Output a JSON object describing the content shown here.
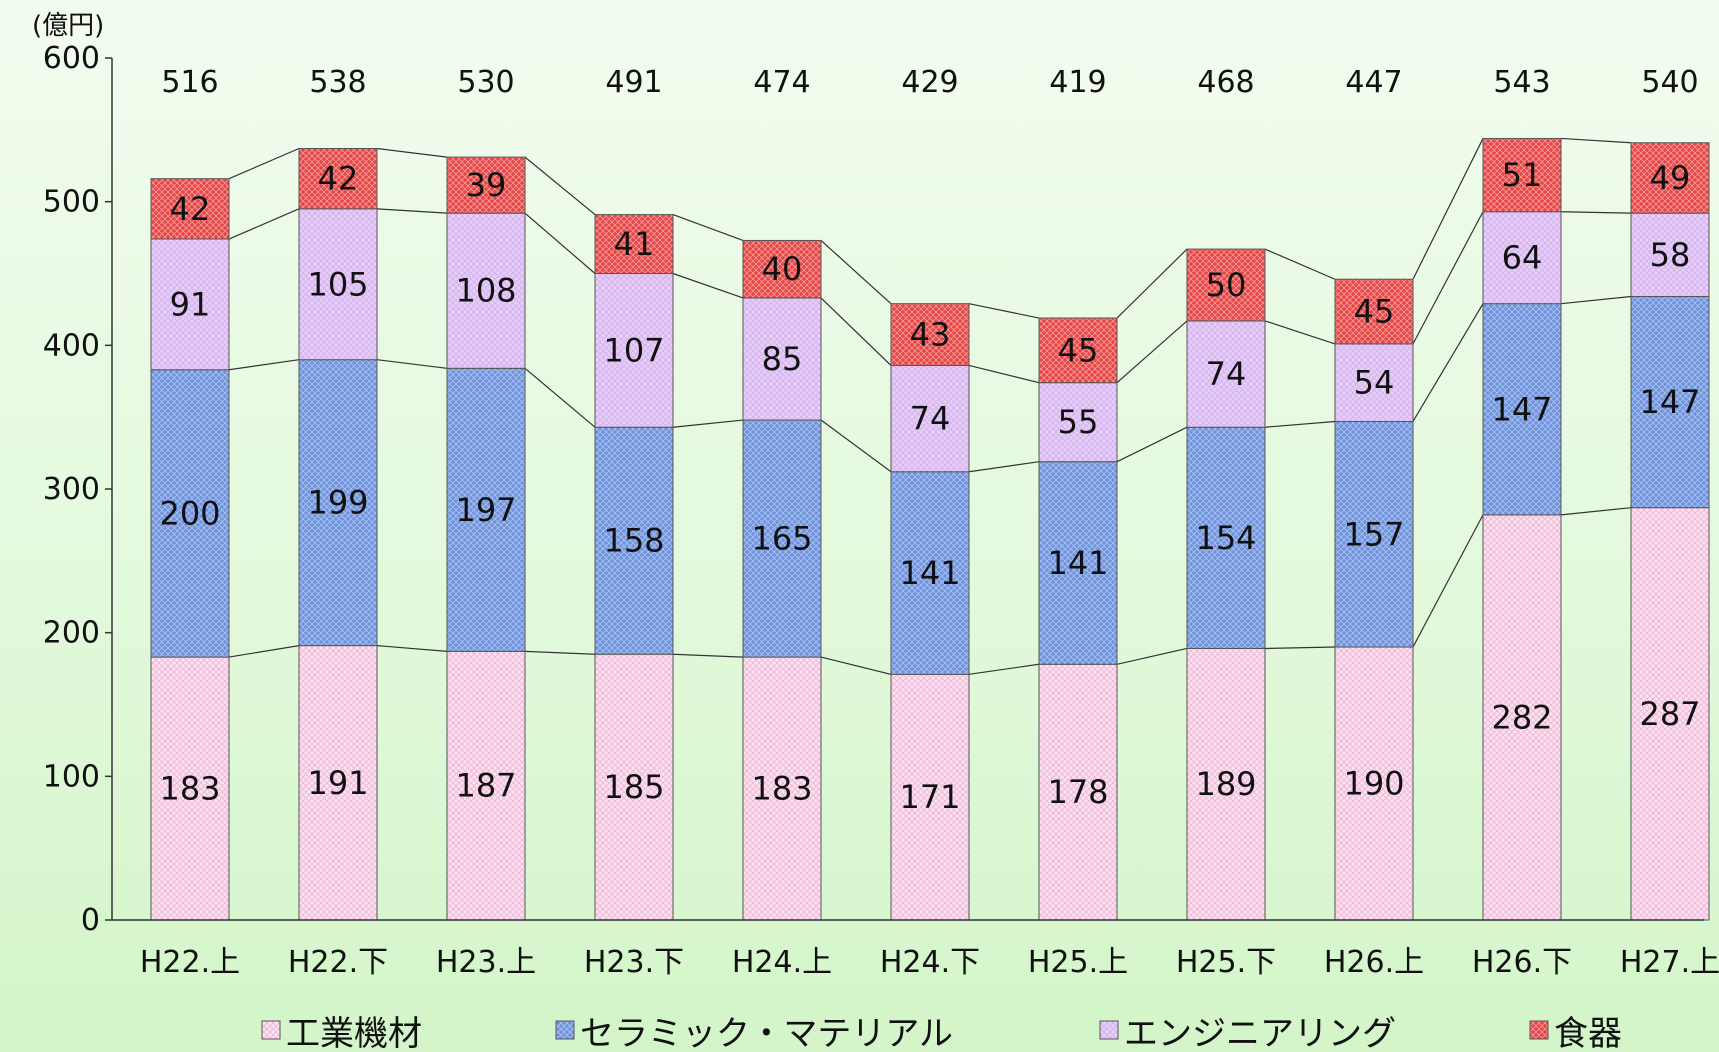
{
  "chart_data": {
    "type": "bar",
    "stacked": true,
    "unit_label": "(億円)",
    "categories": [
      "H22.上",
      "H22.下",
      "H23.上",
      "H23.下",
      "H24.上",
      "H24.下",
      "H25.上",
      "H25.下",
      "H26.上",
      "H26.下",
      "H27.上"
    ],
    "series": [
      {
        "name": "工業機材",
        "color": "#f9d4ea",
        "values": [
          183,
          191,
          187,
          185,
          183,
          171,
          178,
          189,
          190,
          282,
          287
        ]
      },
      {
        "name": "セラミック・マテリアル",
        "color": "#7c9ee0",
        "values": [
          200,
          199,
          197,
          158,
          165,
          141,
          141,
          154,
          157,
          147,
          147
        ]
      },
      {
        "name": "エンジニアリング",
        "color": "#e4c8f5",
        "values": [
          91,
          105,
          108,
          107,
          85,
          74,
          55,
          74,
          54,
          64,
          58
        ]
      },
      {
        "name": "食器",
        "color": "#e84a4a",
        "values": [
          42,
          42,
          39,
          41,
          40,
          43,
          45,
          50,
          45,
          51,
          49
        ]
      }
    ],
    "totals": [
      516,
      538,
      530,
      491,
      474,
      429,
      419,
      468,
      447,
      543,
      540
    ],
    "ylim": [
      0,
      600
    ],
    "yticks": [
      0,
      100,
      200,
      300,
      400,
      500,
      600
    ],
    "grid": false,
    "legend_position": "bottom",
    "series_lines": true
  }
}
